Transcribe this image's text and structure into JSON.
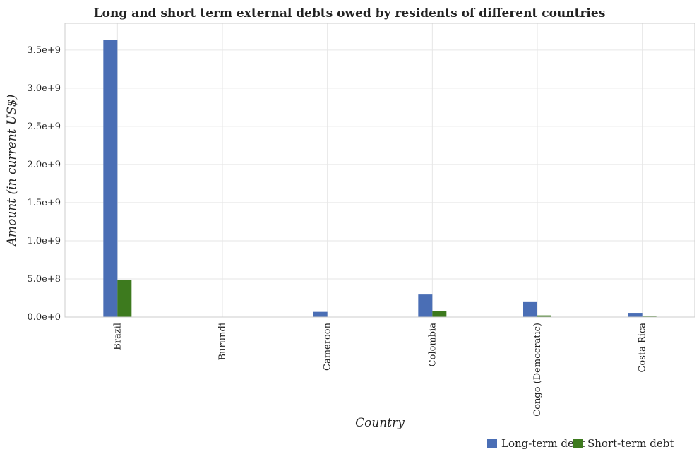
{
  "chart_data": {
    "type": "bar",
    "title": "Long and short term external debts owed by residents of different countries",
    "xlabel": "Country",
    "ylabel": "Amount (in current US$)",
    "categories": [
      "Brazil",
      "Burundi",
      "Cameroon",
      "Colombia",
      "Congo (Democratic)",
      "Costa Rica"
    ],
    "series": [
      {
        "name": "Long-term debt",
        "color": "#4a6eb5",
        "values": [
          3630000000,
          0,
          68000000,
          295000000,
          205000000,
          55000000
        ]
      },
      {
        "name": "Short-term debt",
        "color": "#3d7a1e",
        "values": [
          490000000,
          0,
          0,
          82000000,
          22000000,
          8000000
        ]
      }
    ],
    "yticks": [
      0,
      500000000,
      1000000000,
      1500000000,
      2000000000,
      2500000000,
      3000000000,
      3500000000
    ],
    "ytick_labels": [
      "0.0e+0",
      "5.0e+8",
      "1.0e+9",
      "1.5e+9",
      "2.0e+9",
      "2.5e+9",
      "3.0e+9",
      "3.5e+9"
    ],
    "ylim": [
      0,
      3850000000
    ],
    "grid": true,
    "legend_position": "bottom-right"
  }
}
